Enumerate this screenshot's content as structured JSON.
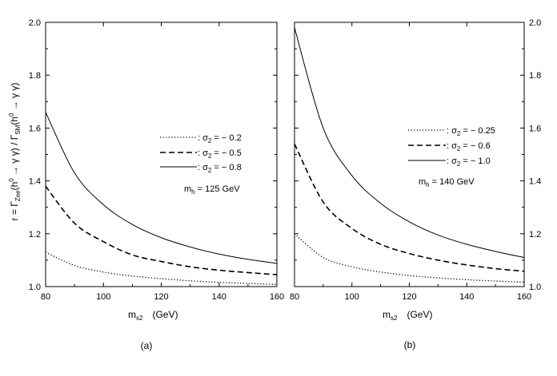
{
  "ylabel_parts": {
    "r_eq": "r = Γ",
    "sub_zee": "Zee",
    "h_open": "(h",
    "sup0a": "0",
    "arrow1": " → γ γ) / Γ",
    "sub_sm": "SM",
    "h_open2": "(h",
    "sup0b": "0",
    "arrow2": " → γ γ)"
  },
  "xlabel_parts": {
    "m": "m",
    "sub": "s2",
    "unit": "(GeV)"
  },
  "sigma_sym": "σ",
  "sigma_sub": "2",
  "mh_m": "m",
  "mh_sub": "h",
  "chart_data": [
    {
      "type": "line",
      "panel_label": "(a)",
      "xlim": [
        80,
        160
      ],
      "ylim": [
        1.0,
        2.0
      ],
      "x_ticks": [
        "80",
        "100",
        "120",
        "140",
        "160"
      ],
      "y_ticks": [
        "1.0",
        "1.2",
        "1.4",
        "1.6",
        "1.8",
        "2.0"
      ],
      "y_tick_side": "left",
      "legend_placement": "middle-right",
      "annotation": " = 125 GeV",
      "x": [
        80,
        90,
        100,
        110,
        120,
        130,
        140,
        150,
        160
      ],
      "series": [
        {
          "name": ": σ₂ = − 0.2",
          "label_value": ": ",
          "label_num": " = − 0.2",
          "style": "dotted",
          "values": [
            1.13,
            1.08,
            1.055,
            1.04,
            1.03,
            1.022,
            1.016,
            1.012,
            1.008
          ]
        },
        {
          "name": ": σ₂ = − 0.5",
          "label_value": ": ",
          "label_num": " = − 0.5",
          "style": "dashed",
          "values": [
            1.38,
            1.24,
            1.17,
            1.12,
            1.095,
            1.075,
            1.062,
            1.053,
            1.045
          ]
        },
        {
          "name": ": σ₂ = − 0.8",
          "label_value": ": ",
          "label_num": " = − 0.8",
          "style": "solid",
          "values": [
            1.66,
            1.43,
            1.31,
            1.235,
            1.185,
            1.15,
            1.123,
            1.103,
            1.088
          ]
        }
      ]
    },
    {
      "type": "line",
      "panel_label": "(b)",
      "xlim": [
        80,
        160
      ],
      "ylim": [
        1.0,
        2.0
      ],
      "x_ticks": [
        "80",
        "100",
        "120",
        "140",
        "160"
      ],
      "y_ticks": [
        "1.0",
        "1.2",
        "1.4",
        "1.6",
        "1.8",
        "2.0"
      ],
      "y_tick_side": "right",
      "legend_placement": "middle-right",
      "annotation": " = 140 GeV",
      "x": [
        80,
        90,
        100,
        110,
        120,
        130,
        140,
        150,
        160
      ],
      "series": [
        {
          "name": ": σ₂ = − 0.25",
          "label_value": ": ",
          "label_num": " = − 0.25",
          "style": "dotted",
          "values": [
            1.2,
            1.11,
            1.075,
            1.055,
            1.042,
            1.033,
            1.026,
            1.021,
            1.017
          ]
        },
        {
          "name": ": σ₂ = − 0.6",
          "label_value": ": ",
          "label_num": " = − 0.6",
          "style": "dashed",
          "values": [
            1.54,
            1.32,
            1.22,
            1.16,
            1.125,
            1.1,
            1.082,
            1.068,
            1.058
          ]
        },
        {
          "name": ": σ₂ = − 1.0",
          "label_value": ": ",
          "label_num": " = − 1.0",
          "style": "solid",
          "values": [
            1.98,
            1.6,
            1.42,
            1.315,
            1.245,
            1.195,
            1.16,
            1.133,
            1.11
          ]
        }
      ]
    }
  ]
}
